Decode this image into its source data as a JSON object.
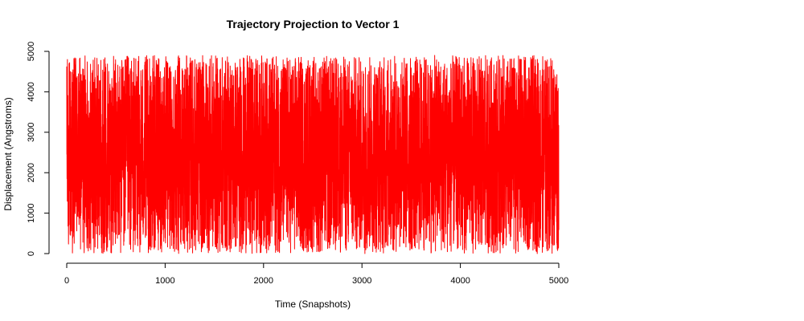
{
  "chart_data": {
    "type": "line",
    "title": "Trajectory Projection to Vector 1",
    "xlabel": "Time (Snapshots)",
    "ylabel": "Displacement (Angstroms)",
    "xlim": [
      0,
      5000
    ],
    "ylim": [
      0,
      5000
    ],
    "x_ticks": [
      0,
      1000,
      2000,
      3000,
      4000,
      5000
    ],
    "y_ticks": [
      0,
      1000,
      2000,
      3000,
      4000,
      5000
    ],
    "x_tick_labels": [
      "0",
      "1000",
      "2000",
      "3000",
      "4000",
      "5000"
    ],
    "y_tick_labels": [
      "0",
      "1000",
      "2000",
      "3000",
      "4000",
      "5000"
    ],
    "grid": false,
    "legend": "none",
    "series": [
      {
        "color": "#ff0000",
        "x_range": [
          0,
          5000
        ],
        "y_range": [
          0,
          4900
        ]
      }
    ]
  }
}
